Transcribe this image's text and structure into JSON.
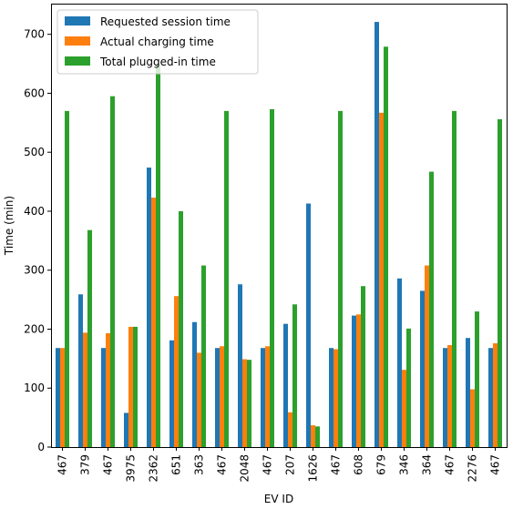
{
  "chart_data": {
    "type": "bar",
    "xlabel": "EV ID",
    "ylabel": "Time (min)",
    "ylim": [
      0,
      752
    ],
    "yticks": [
      0,
      100,
      200,
      300,
      400,
      500,
      600,
      700
    ],
    "categories": [
      "467",
      "379",
      "467",
      "3975",
      "2362",
      "651",
      "363",
      "467",
      "2048",
      "467",
      "207",
      "1626",
      "467",
      "608",
      "679",
      "346",
      "364",
      "467",
      "2276",
      "467"
    ],
    "series": [
      {
        "name": "Requested session time",
        "color": "#1f77b4",
        "values": [
          168,
          259,
          168,
          58,
          474,
          181,
          212,
          168,
          276,
          168,
          209,
          413,
          168,
          223,
          721,
          286,
          265,
          168,
          185,
          168
        ]
      },
      {
        "name": "Actual charging time",
        "color": "#ff7f0e",
        "values": [
          168,
          194,
          193,
          204,
          423,
          256,
          160,
          171,
          149,
          171,
          59,
          37,
          166,
          225,
          567,
          131,
          308,
          173,
          98,
          176
        ]
      },
      {
        "name": "Total plugged-in time",
        "color": "#2ca02c",
        "values": [
          570,
          368,
          595,
          204,
          649,
          400,
          308,
          570,
          148,
          573,
          242,
          35,
          570,
          273,
          679,
          201,
          467,
          570,
          230,
          556
        ]
      }
    ],
    "legend_position": "top-left",
    "grid": false
  }
}
